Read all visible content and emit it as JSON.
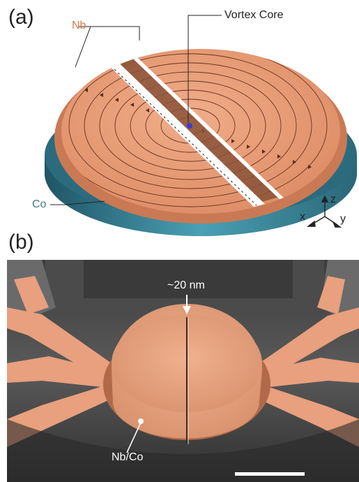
{
  "panel_a": {
    "label": "(a)",
    "layer_top": "Nb",
    "layer_bottom": "Co",
    "vortex_label": "Vortex Core",
    "axes": {
      "z": "z",
      "x": "x",
      "y": "y"
    }
  },
  "panel_b": {
    "label": "(b)",
    "gap_label": "~20 nm",
    "material_label": "Nb/Co"
  },
  "colors": {
    "niobium": "#e8a07e",
    "cobalt": "#2d6f83",
    "gap": "#ffffff",
    "sem_background": "#4a4a4a"
  }
}
